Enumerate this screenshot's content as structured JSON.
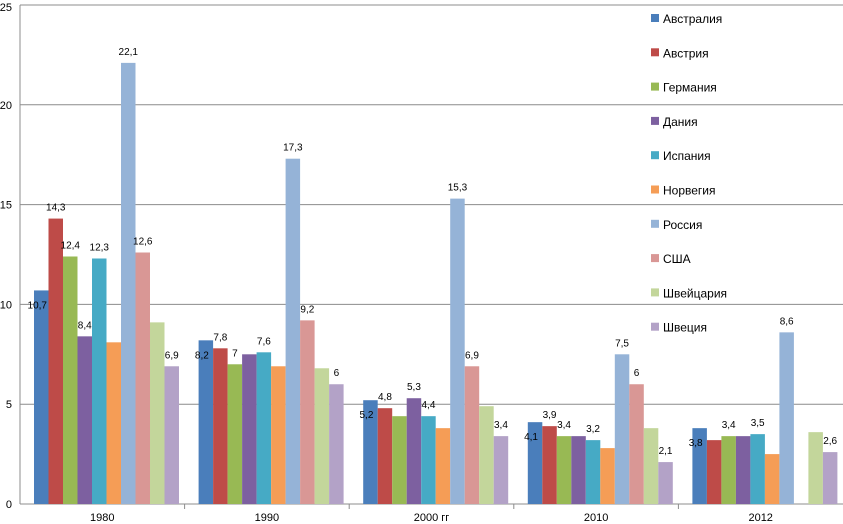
{
  "chart_data": {
    "type": "bar",
    "categories": [
      "1980",
      "1990",
      "2000 гг",
      "2010",
      "2012"
    ],
    "ylim": [
      0,
      25
    ],
    "yticks": [
      0,
      5,
      10,
      15,
      20,
      25
    ],
    "grid": true,
    "legend_position": "right",
    "series": [
      {
        "name": "Австралия",
        "color": "#4a7ebb",
        "values": [
          10.7,
          8.2,
          5.2,
          4.1,
          3.8
        ],
        "labels": [
          "10,7",
          "8,2",
          "5,2",
          "4,1",
          "3,8"
        ]
      },
      {
        "name": "Австрия",
        "color": "#be4b48",
        "values": [
          14.3,
          7.8,
          4.8,
          3.9,
          3.2
        ],
        "labels": [
          "14,3",
          "7,8",
          "4,8",
          "3,9",
          ""
        ]
      },
      {
        "name": "Германия",
        "color": "#98b954",
        "values": [
          12.4,
          7.0,
          4.4,
          3.4,
          3.4
        ],
        "labels": [
          "12,4",
          "7",
          "",
          "3,4",
          "3,4"
        ]
      },
      {
        "name": "Дания",
        "color": "#7d60a0",
        "values": [
          8.4,
          7.5,
          5.3,
          3.4,
          3.4
        ],
        "labels": [
          "8,4",
          "",
          "5,3",
          "",
          ""
        ]
      },
      {
        "name": "Испания",
        "color": "#46aac5",
        "values": [
          12.3,
          7.6,
          4.4,
          3.2,
          3.5
        ],
        "labels": [
          "12,3",
          "7,6",
          "4,4",
          "3,2",
          "3,5"
        ]
      },
      {
        "name": "Норвегия",
        "color": "#f59d56",
        "values": [
          8.1,
          6.9,
          3.8,
          2.8,
          2.5
        ],
        "labels": [
          "",
          "",
          "",
          "",
          ""
        ]
      },
      {
        "name": "Россия",
        "color": "#95b3d7",
        "values": [
          22.1,
          17.3,
          15.3,
          7.5,
          8.6
        ],
        "labels": [
          "22,1",
          "17,3",
          "15,3",
          "7,5",
          "8,6"
        ]
      },
      {
        "name": "США",
        "color": "#d99795",
        "values": [
          12.6,
          9.2,
          6.9,
          6.0,
          0
        ],
        "labels": [
          "12,6",
          "9,2",
          "6,9",
          "6",
          ""
        ]
      },
      {
        "name": "Швейцария",
        "color": "#c3d69b",
        "values": [
          9.1,
          6.8,
          4.9,
          3.8,
          3.6
        ],
        "labels": [
          "",
          "",
          "",
          "",
          ""
        ]
      },
      {
        "name": "Швеция",
        "color": "#b3a2c7",
        "values": [
          6.9,
          6.0,
          3.4,
          2.1,
          2.6
        ],
        "labels": [
          "6,9",
          "6",
          "3,4",
          "2,1",
          "2,6"
        ]
      }
    ]
  }
}
